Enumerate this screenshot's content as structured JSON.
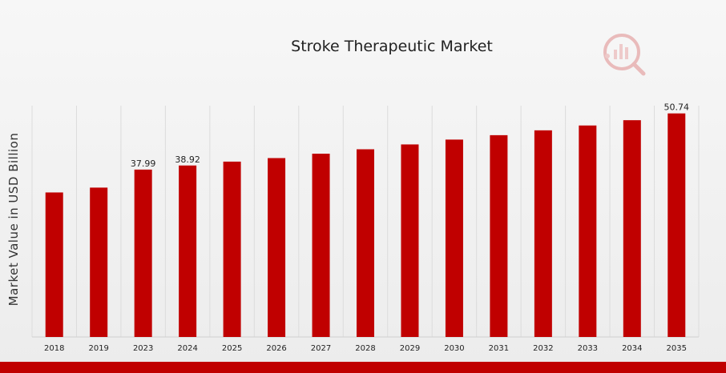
{
  "chart_data": {
    "type": "bar",
    "title": "Stroke Therapeutic Market",
    "xlabel": "",
    "ylabel": "Market Value in USD Billion",
    "categories": [
      "2018",
      "2019",
      "2023",
      "2024",
      "2025",
      "2026",
      "2027",
      "2028",
      "2029",
      "2030",
      "2031",
      "2032",
      "2033",
      "2034",
      "2035"
    ],
    "values": [
      32.8,
      33.9,
      37.99,
      38.92,
      39.8,
      40.6,
      41.6,
      42.6,
      43.7,
      44.8,
      45.8,
      46.9,
      48.0,
      49.2,
      50.74
    ],
    "data_labels": [
      {
        "index": 2,
        "text": "37.99"
      },
      {
        "index": 3,
        "text": "38.92"
      },
      {
        "index": 14,
        "text": "50.74"
      }
    ],
    "ylim": [
      0,
      52.5
    ],
    "grid": true,
    "legend": "none",
    "bar_color": "#c00000"
  }
}
